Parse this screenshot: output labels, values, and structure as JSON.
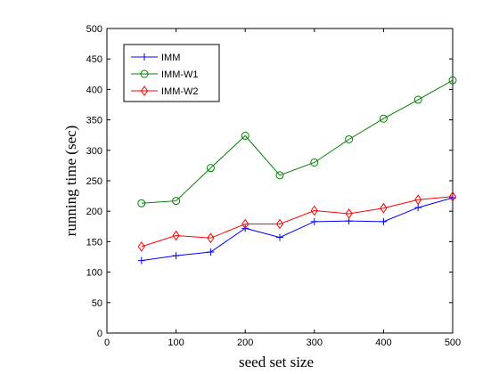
{
  "chart_data": {
    "type": "line",
    "xlabel": "seed set size",
    "ylabel": "running time (sec)",
    "xlim": [
      0,
      500
    ],
    "ylim": [
      0,
      500
    ],
    "xticks": [
      0,
      100,
      200,
      300,
      400,
      500
    ],
    "yticks": [
      0,
      50,
      100,
      150,
      200,
      250,
      300,
      350,
      400,
      450,
      500
    ],
    "grid": false,
    "legend_position": "top-left",
    "x": [
      50,
      100,
      150,
      200,
      250,
      300,
      350,
      400,
      450,
      500
    ],
    "series": [
      {
        "name": "IMM",
        "color": "#0000ff",
        "marker": "plus",
        "values": [
          119,
          127,
          133,
          172,
          157,
          183,
          184,
          183,
          206,
          222
        ]
      },
      {
        "name": "IMM-W1",
        "color": "#008000",
        "marker": "circle",
        "values": [
          213,
          217,
          271,
          324,
          259,
          280,
          318,
          352,
          383,
          415
        ]
      },
      {
        "name": "IMM-W2",
        "color": "#ff0000",
        "marker": "diamond",
        "values": [
          142,
          160,
          156,
          179,
          179,
          201,
          196,
          205,
          219,
          224
        ]
      }
    ]
  }
}
